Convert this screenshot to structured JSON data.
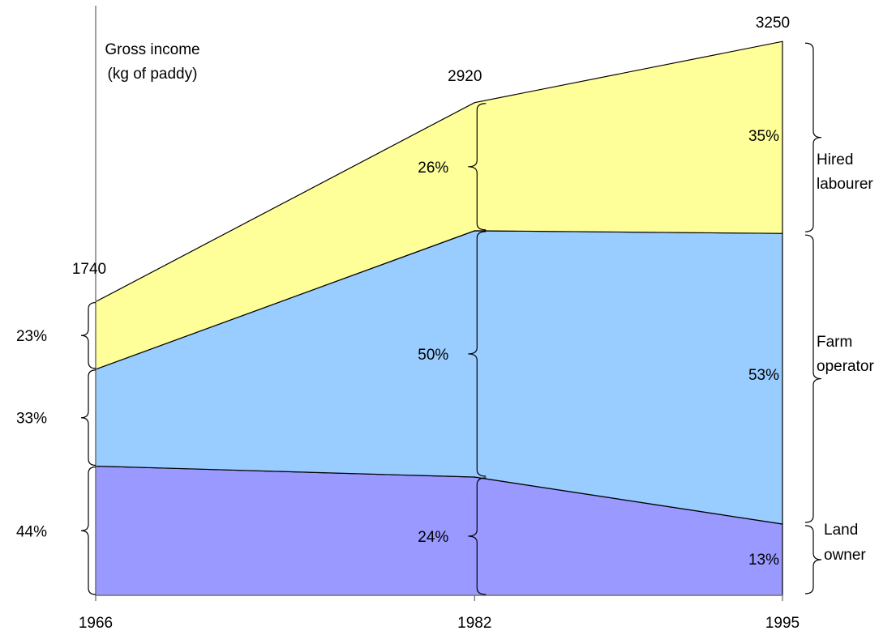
{
  "chart_data": {
    "type": "area",
    "title_lines": [
      "Gross income",
      "(kg of paddy)"
    ],
    "x": [
      1966,
      1982,
      1995
    ],
    "x_tick_labels": [
      "1966",
      "1982",
      "1995"
    ],
    "totals": [
      1740,
      2920,
      3250
    ],
    "total_labels": [
      "1740",
      "2920",
      "3250"
    ],
    "ylim": [
      0,
      3500
    ],
    "series": [
      {
        "name": "Land owner",
        "legend_lines": [
          "Land",
          "owner"
        ],
        "percent": [
          44,
          24,
          13
        ],
        "percent_labels": [
          "44%",
          "24%",
          "13%"
        ],
        "color": "#9999ff"
      },
      {
        "name": "Farm operator",
        "legend_lines": [
          "Farm",
          "operator"
        ],
        "percent": [
          33,
          50,
          53
        ],
        "percent_labels": [
          "33%",
          "50%",
          "53%"
        ],
        "color": "#99ccff"
      },
      {
        "name": "Hired labourer",
        "legend_lines": [
          "Hired",
          "labourer"
        ],
        "percent": [
          23,
          26,
          35
        ],
        "percent_labels": [
          "23%",
          "26%",
          "35%"
        ],
        "color": "#ffff99"
      }
    ],
    "colors": {
      "axis": "#808080",
      "line": "#000000"
    }
  }
}
